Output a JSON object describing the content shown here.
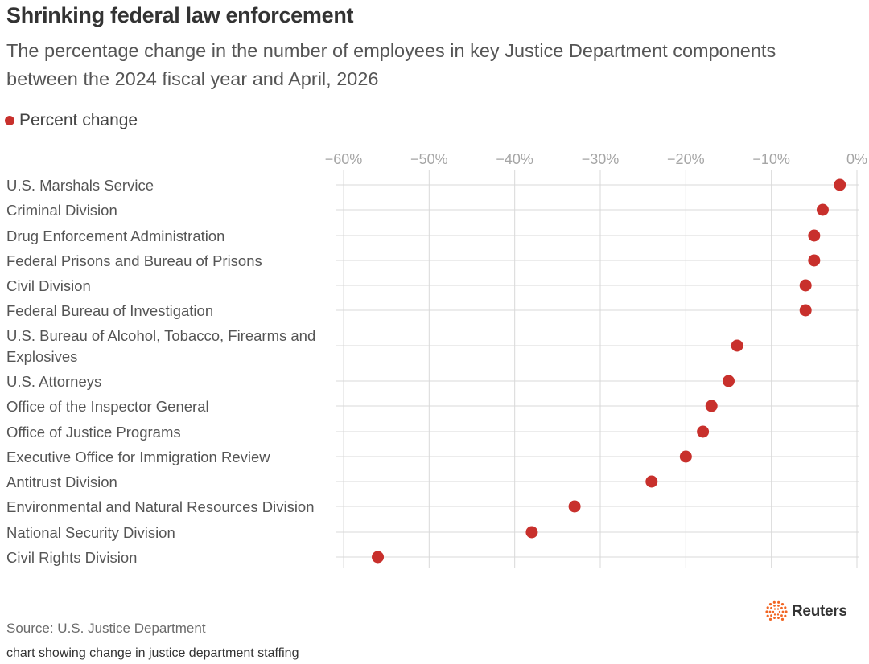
{
  "title": "Shrinking federal law enforcement",
  "subtitle": "The percentage change in the number of employees in key Justice Department components between the 2024 fiscal year and April, 2026",
  "legend": {
    "label": "Percent change"
  },
  "source": "Source: U.S. Justice Department",
  "caption": "chart showing change in justice department staffing",
  "logo": {
    "text": "Reuters",
    "icon": "reuters-dot-ring-icon"
  },
  "colors": {
    "dot": "#c8302c",
    "grid": "#d9d9d9",
    "tick_text": "#a6a6a6",
    "label_text": "#555555",
    "logo_orange": "#f26522"
  },
  "chart_data": {
    "type": "scatter",
    "title": "Shrinking federal law enforcement",
    "series": [
      {
        "name": "Percent change"
      }
    ],
    "x_ticks": [
      "−60%",
      "−50%",
      "−40%",
      "−30%",
      "−20%",
      "−10%",
      "0%"
    ],
    "x_tick_values": [
      -60,
      -50,
      -40,
      -30,
      -20,
      -10,
      0
    ],
    "xlim": [
      -60,
      0
    ],
    "grid": true,
    "legend_position": "top-left",
    "categories": [
      [
        "U.S. Marshals Service"
      ],
      [
        "Criminal Division"
      ],
      [
        "Drug Enforcement Administration"
      ],
      [
        "Federal Prisons and Bureau of Prisons"
      ],
      [
        "Civil Division"
      ],
      [
        "Federal Bureau of Investigation"
      ],
      [
        "U.S. Bureau of Alcohol, Tobacco, Firearms and",
        "Explosives"
      ],
      [
        "U.S. Attorneys"
      ],
      [
        "Office of the Inspector General"
      ],
      [
        "Office of Justice Programs"
      ],
      [
        "Executive Office for Immigration Review"
      ],
      [
        "Antitrust Division"
      ],
      [
        "Environmental and Natural Resources Division"
      ],
      [
        "National Security Division"
      ],
      [
        "Civil Rights Division"
      ]
    ],
    "values": [
      -2,
      -4,
      -5,
      -5,
      -6,
      -6,
      -14,
      -15,
      -17,
      -18,
      -20,
      -24,
      -33,
      -38,
      -56
    ]
  }
}
